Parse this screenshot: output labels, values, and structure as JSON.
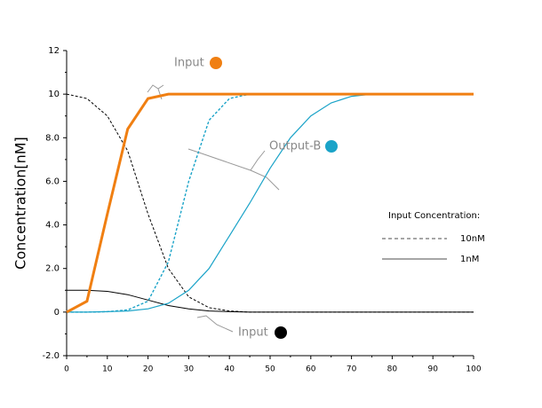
{
  "chart_data": {
    "type": "line",
    "y_label": "Concentration[nM]",
    "x": [
      0,
      5,
      10,
      15,
      20,
      25,
      30,
      35,
      40,
      45,
      50,
      55,
      60,
      65,
      70,
      75,
      80,
      85,
      90,
      95,
      100
    ],
    "series": [
      {
        "color": "#000000",
        "dashed": true,
        "width": 1,
        "values": [
          10,
          9.8,
          9.0,
          7.4,
          4.5,
          2.0,
          0.7,
          0.2,
          0.05,
          0,
          0,
          0,
          0,
          0,
          0,
          0,
          0,
          0,
          0,
          0,
          0
        ]
      },
      {
        "color": "#000000",
        "dashed": false,
        "width": 1,
        "values": [
          1.0,
          1.0,
          0.95,
          0.8,
          0.55,
          0.3,
          0.15,
          0.05,
          0.02,
          0,
          0,
          0,
          0,
          0,
          0,
          0,
          0,
          0,
          0,
          0,
          0
        ]
      },
      {
        "color": "#1aa3c8",
        "dashed": true,
        "width": 1.4,
        "values": [
          0,
          0,
          0.02,
          0.1,
          0.5,
          2.3,
          6.0,
          8.8,
          9.8,
          10,
          10,
          10,
          10,
          10,
          10,
          10,
          10,
          10,
          10,
          10,
          10
        ]
      },
      {
        "color": "#1aa3c8",
        "dashed": false,
        "width": 1.2,
        "values": [
          0,
          0,
          0.02,
          0.05,
          0.15,
          0.4,
          1.0,
          2.0,
          3.5,
          5.0,
          6.6,
          8.0,
          9.0,
          9.6,
          9.9,
          10,
          10,
          10,
          10,
          10,
          10
        ]
      },
      {
        "color": "#f07f12",
        "dashed": false,
        "width": 3,
        "values": [
          0,
          0.5,
          4.5,
          8.4,
          9.8,
          10,
          10,
          10,
          10,
          10,
          10,
          10,
          10,
          10,
          10,
          10,
          10,
          10,
          10,
          10,
          10
        ]
      }
    ],
    "xlim": [
      0,
      100
    ],
    "xticks": [
      0,
      10,
      20,
      30,
      40,
      50,
      60,
      70,
      80,
      90,
      100
    ],
    "ylim": [
      -2,
      12
    ],
    "yticks": [
      {
        "value": -2,
        "label": "-2.0"
      },
      0,
      {
        "value": 2,
        "label": "2.0"
      },
      {
        "value": 4,
        "label": "4.0"
      },
      {
        "value": 6,
        "label": "6.0"
      },
      {
        "value": 8,
        "label": "8.0"
      },
      10,
      12
    ],
    "annotations": [
      {
        "text": "Input",
        "color": "#f07f12"
      },
      {
        "text": "Output-B",
        "color": "#1aa3c8"
      },
      {
        "text": "Input",
        "color": "#000000"
      }
    ],
    "legend": {
      "title": "Input Concentration:",
      "entries": [
        {
          "label": "10nM",
          "dashed": true,
          "color": "#888888"
        },
        {
          "label": "1nM",
          "dashed": false,
          "color": "#888888"
        }
      ]
    }
  }
}
